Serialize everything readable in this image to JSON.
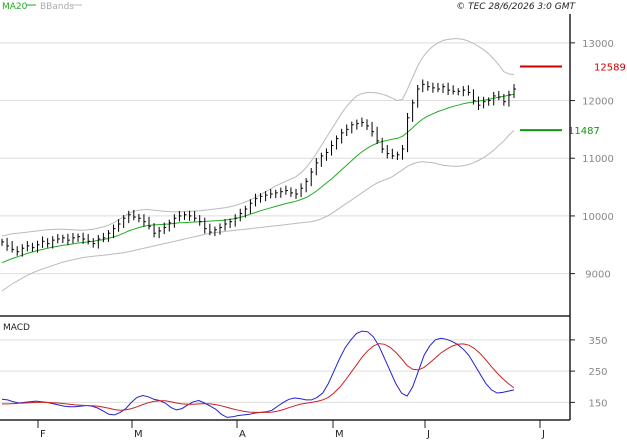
{
  "header": {
    "legend_ma": "MA20",
    "legend_bb": "BBands",
    "timestamp": "© TEC 28/6/2026 3:0 GMT"
  },
  "colors": {
    "ma": "#22aa22",
    "bbands": "#bbbbbb",
    "price": "#000000",
    "resistance": "#cc0000",
    "support": "#119911",
    "macd": "#2222cc",
    "signal": "#cc2222",
    "grid": "#dddddd",
    "axis": "#222222"
  },
  "chart_data": [
    {
      "type": "line",
      "panel": "price",
      "ylim": [
        8300,
        13500
      ],
      "yticks": [
        9000,
        10000,
        11000,
        12000,
        13000
      ],
      "ytick_labels": [
        "9000",
        "10000",
        "11000",
        "12000",
        "13000"
      ],
      "months": [
        "F",
        "M",
        "A",
        "M",
        "J",
        "J"
      ],
      "levels": [
        {
          "name": "resistance",
          "value": 12589,
          "label": "12589"
        },
        {
          "name": "support",
          "value": 11487,
          "label": "11487"
        }
      ],
      "close": [
        9550,
        9480,
        9420,
        9380,
        9440,
        9480,
        9450,
        9500,
        9560,
        9520,
        9580,
        9600,
        9620,
        9580,
        9620,
        9640,
        9600,
        9560,
        9520,
        9600,
        9620,
        9700,
        9780,
        9860,
        9960,
        10020,
        9980,
        9960,
        9900,
        9820,
        9700,
        9740,
        9800,
        9880,
        9960,
        10000,
        10020,
        10000,
        9960,
        9900,
        9780,
        9720,
        9760,
        9800,
        9860,
        9900,
        9960,
        10040,
        10120,
        10220,
        10300,
        10340,
        10360,
        10380,
        10400,
        10420,
        10440,
        10400,
        10380,
        10480,
        10600,
        10760,
        10920,
        11040,
        11100,
        11220,
        11340,
        11440,
        11500,
        11580,
        11600,
        11620,
        11560,
        11460,
        11300,
        11160,
        11080,
        11040,
        11060,
        11160,
        11700,
        11960,
        12200,
        12280,
        12240,
        12220,
        12200,
        12240,
        12180,
        12160,
        12160,
        12180,
        12140,
        12000,
        11920,
        11980,
        12000,
        12080,
        12060,
        11980,
        12100,
        12200
      ],
      "ma20": [
        9190,
        9225,
        9260,
        9290,
        9320,
        9350,
        9375,
        9400,
        9420,
        9440,
        9460,
        9475,
        9490,
        9500,
        9515,
        9530,
        9540,
        9550,
        9560,
        9575,
        9590,
        9610,
        9635,
        9665,
        9700,
        9740,
        9770,
        9800,
        9820,
        9835,
        9845,
        9850,
        9855,
        9860,
        9870,
        9880,
        9885,
        9890,
        9895,
        9900,
        9905,
        9910,
        9915,
        9920,
        9930,
        9940,
        9955,
        9975,
        10000,
        10030,
        10060,
        10090,
        10115,
        10140,
        10165,
        10190,
        10215,
        10235,
        10255,
        10285,
        10320,
        10370,
        10430,
        10500,
        10570,
        10640,
        10720,
        10800,
        10880,
        10960,
        11040,
        11110,
        11170,
        11220,
        11260,
        11290,
        11310,
        11330,
        11345,
        11380,
        11450,
        11530,
        11610,
        11680,
        11730,
        11770,
        11810,
        11840,
        11870,
        11900,
        11920,
        11945,
        11960,
        11975,
        11990,
        12005,
        12020,
        12040,
        12060,
        12075,
        12090,
        12110
      ],
      "bb_upper": [
        9650,
        9670,
        9690,
        9700,
        9710,
        9720,
        9730,
        9740,
        9750,
        9760,
        9765,
        9770,
        9770,
        9765,
        9760,
        9755,
        9750,
        9760,
        9770,
        9790,
        9810,
        9840,
        9880,
        9930,
        9990,
        10040,
        10080,
        10100,
        10110,
        10110,
        10100,
        10090,
        10080,
        10075,
        10070,
        10070,
        10075,
        10080,
        10085,
        10090,
        10100,
        10110,
        10120,
        10130,
        10140,
        10160,
        10180,
        10210,
        10240,
        10280,
        10320,
        10370,
        10420,
        10470,
        10520,
        10560,
        10600,
        10640,
        10680,
        10750,
        10840,
        10950,
        11080,
        11220,
        11360,
        11500,
        11640,
        11780,
        11900,
        12000,
        12080,
        12120,
        12140,
        12140,
        12130,
        12110,
        12080,
        12040,
        12000,
        12020,
        12200,
        12400,
        12600,
        12750,
        12860,
        12940,
        13000,
        13040,
        13060,
        13070,
        13070,
        13060,
        13030,
        12990,
        12940,
        12880,
        12810,
        12720,
        12620,
        12500,
        12460,
        12450
      ],
      "bb_lower": [
        8700,
        8760,
        8820,
        8870,
        8920,
        8970,
        9010,
        9050,
        9080,
        9110,
        9140,
        9170,
        9200,
        9220,
        9240,
        9260,
        9280,
        9290,
        9300,
        9310,
        9320,
        9330,
        9340,
        9350,
        9360,
        9380,
        9400,
        9420,
        9440,
        9460,
        9480,
        9500,
        9520,
        9540,
        9560,
        9580,
        9600,
        9620,
        9640,
        9660,
        9680,
        9700,
        9710,
        9720,
        9730,
        9740,
        9750,
        9760,
        9770,
        9780,
        9790,
        9800,
        9810,
        9820,
        9830,
        9840,
        9850,
        9860,
        9870,
        9880,
        9890,
        9900,
        9920,
        9950,
        9990,
        10040,
        10100,
        10160,
        10220,
        10280,
        10340,
        10400,
        10460,
        10520,
        10570,
        10610,
        10640,
        10680,
        10740,
        10800,
        10860,
        10900,
        10930,
        10940,
        10930,
        10920,
        10900,
        10880,
        10870,
        10860,
        10860,
        10870,
        10890,
        10920,
        10960,
        11010,
        11070,
        11140,
        11220,
        11300,
        11400,
        11480
      ]
    },
    {
      "type": "line",
      "panel": "macd",
      "title": "MACD",
      "ylim": [
        100,
        420
      ],
      "yticks": [
        150,
        250,
        350
      ],
      "ytick_labels": [
        "150",
        "250",
        "350"
      ],
      "series": [
        {
          "name": "MACD",
          "values": [
            160,
            158,
            152,
            148,
            150,
            152,
            154,
            152,
            150,
            146,
            142,
            138,
            136,
            136,
            138,
            140,
            138,
            132,
            122,
            112,
            110,
            118,
            130,
            150,
            166,
            172,
            168,
            160,
            156,
            148,
            134,
            126,
            130,
            142,
            152,
            156,
            148,
            138,
            128,
            112,
            102,
            104,
            108,
            110,
            112,
            116,
            118,
            120,
            125,
            138,
            150,
            160,
            164,
            162,
            158,
            158,
            166,
            180,
            210,
            250,
            290,
            325,
            350,
            370,
            378,
            376,
            360,
            330,
            290,
            250,
            210,
            180,
            170,
            200,
            250,
            300,
            330,
            350,
            355,
            352,
            345,
            335,
            320,
            300,
            270,
            240,
            210,
            190,
            180,
            182,
            186,
            190
          ]
        },
        {
          "name": "Signal",
          "values": [
            145,
            145,
            146,
            147,
            148,
            149,
            150,
            150,
            150,
            149,
            148,
            146,
            144,
            142,
            141,
            140,
            139,
            138,
            135,
            131,
            127,
            125,
            126,
            130,
            136,
            143,
            149,
            153,
            155,
            155,
            152,
            148,
            145,
            144,
            144,
            145,
            146,
            145,
            143,
            139,
            134,
            129,
            125,
            121,
            119,
            118,
            118,
            118,
            119,
            122,
            127,
            133,
            139,
            144,
            147,
            150,
            153,
            158,
            166,
            180,
            198,
            220,
            245,
            270,
            295,
            315,
            330,
            338,
            336,
            326,
            310,
            290,
            268,
            256,
            254,
            262,
            276,
            292,
            308,
            320,
            330,
            336,
            337,
            333,
            322,
            306,
            286,
            264,
            244,
            226,
            210,
            196
          ]
        }
      ]
    }
  ]
}
